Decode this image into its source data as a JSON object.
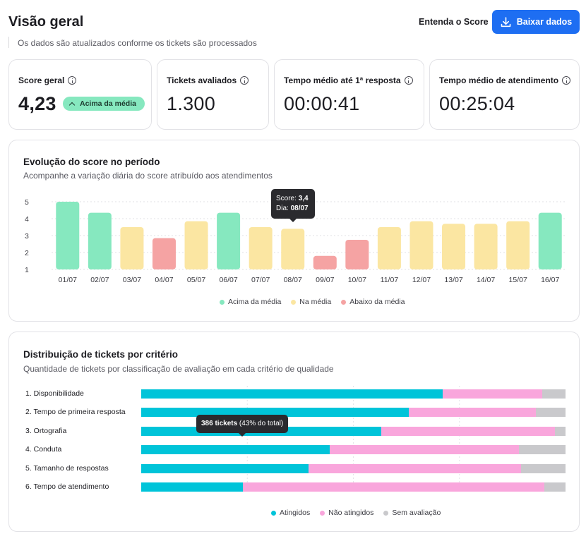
{
  "header": {
    "title": "Visão geral",
    "subtitle": "Os dados são atualizados conforme os tickets são processados",
    "score_link": "Entenda o Score",
    "download_button": "Baixar dados"
  },
  "kpis": [
    {
      "label": "Score geral",
      "value": "4,23",
      "badge": "Acima da média"
    },
    {
      "label": "Tickets avaliados",
      "value": "1.300"
    },
    {
      "label": "Tempo médio até 1ª resposta",
      "value": "00:00:41"
    },
    {
      "label": "Tempo médio de atendimento",
      "value": "00:25:04"
    }
  ],
  "score_chart": {
    "title": "Evolução do score no período",
    "subtitle": "Acompanhe a variação diária do score atribuído aos atendimentos",
    "tooltip": {
      "score_label": "Score:",
      "score_value": "3,4",
      "day_label": "Dia:",
      "day_value": "08/07"
    },
    "legend": {
      "above": "Acima da média",
      "average": "Na média",
      "below": "Abaixo da média"
    }
  },
  "distribution": {
    "title": "Distribuição de tickets por critério",
    "subtitle": "Quantidade de tickets por classificação de avaliação em cada critério de qualidade",
    "tooltip": {
      "bold": "386 tickets",
      "rest": " (43% do total)"
    },
    "legend": {
      "met": "Atingidos",
      "not_met": "Não atingidos",
      "none": "Sem avaliação"
    }
  },
  "colors": {
    "primary": "#1e6ef2",
    "above": "#86e8bf",
    "average": "#fbe6a2",
    "below": "#f5a3a3",
    "met": "#00c4d9",
    "not_met": "#f9a6dc",
    "none": "#c9c9cc"
  },
  "chart_data": [
    {
      "type": "bar",
      "categories": [
        "01/07",
        "02/07",
        "03/07",
        "04/07",
        "05/07",
        "06/07",
        "07/07",
        "08/07",
        "09/07",
        "10/07",
        "11/07",
        "12/07",
        "13/07",
        "14/07",
        "15/07",
        "16/07"
      ],
      "values": [
        5.0,
        4.35,
        3.5,
        2.85,
        3.85,
        4.35,
        3.5,
        3.4,
        1.8,
        2.75,
        3.5,
        3.85,
        3.7,
        3.7,
        3.85,
        4.35
      ],
      "classes": [
        "above",
        "above",
        "average",
        "below",
        "average",
        "above",
        "average",
        "average",
        "below",
        "below",
        "average",
        "average",
        "average",
        "average",
        "average",
        "above"
      ],
      "yticks": [
        1,
        2,
        3,
        4,
        5
      ],
      "ylim": [
        1,
        5
      ],
      "legend_position": "bottom",
      "grid": true
    },
    {
      "type": "bar",
      "orientation": "horizontal-stacked-percent",
      "categories": [
        "1. Disponibilidade",
        "2. Tempo de primeira resposta",
        "3. Ortografia",
        "4. Conduta",
        "5. Tamanho de respostas",
        "6. Tempo de atendimento"
      ],
      "series": [
        {
          "name": "Atingidos",
          "values": [
            71,
            63,
            56.5,
            44.5,
            39.5,
            24
          ]
        },
        {
          "name": "Não atingidos",
          "values": [
            23.5,
            30,
            41,
            44.5,
            50,
            71
          ]
        },
        {
          "name": "Sem avaliação",
          "values": [
            5.5,
            7,
            2.5,
            11,
            10.5,
            5
          ]
        }
      ],
      "legend_position": "bottom"
    }
  ]
}
